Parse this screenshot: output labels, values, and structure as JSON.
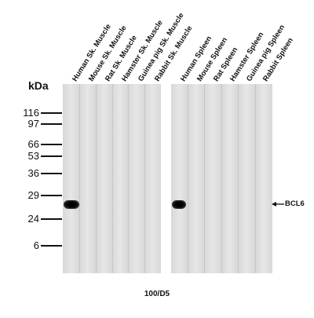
{
  "lanes": [
    "Human Sk. Muscle",
    "Mouse Sk. Muscle",
    "Rat Sk. Muscle",
    "Hamster Sk. Muscle",
    "Guinea pig Sk. Muscle",
    "Rabbit Sk. Muscle",
    "Human Spleen",
    "Mouse Spleen",
    "Rat Spleen",
    "Hamster Spleen",
    "Guinea pig Spleen",
    "Rabbit Spleen"
  ],
  "axis_unit": "kDa",
  "markers": [
    "116",
    "97",
    "66",
    "53",
    "36",
    "29",
    "24",
    "6"
  ],
  "band_label": "BCL6",
  "clone_label": "100/D5",
  "bands": [
    {
      "lane": "Human Sk. Muscle",
      "kda": 26
    },
    {
      "lane": "Human Spleen",
      "kda": 26
    }
  ]
}
